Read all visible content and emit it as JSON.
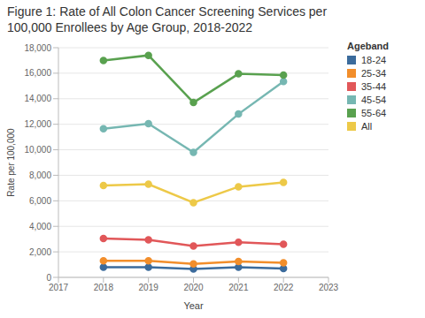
{
  "chart_data": {
    "type": "line",
    "title": "Figure 1: Rate of All Colon Cancer Screening Services per 100,000 Enrollees by Age Group, 2018-2022",
    "x_label": "Year",
    "y_label": "Rate per 100,000",
    "legend_title": "Ageband",
    "legend": "right",
    "grid": true,
    "marker": "circle",
    "x": [
      2018,
      2019,
      2020,
      2021,
      2022
    ],
    "xlim": [
      2017,
      2023
    ],
    "xticks": [
      2017,
      2018,
      2019,
      2020,
      2021,
      2022,
      2023
    ],
    "ylim": [
      0,
      18000
    ],
    "yticks": [
      0,
      {
        "value": 2000,
        "label": "2,000"
      },
      {
        "value": 4000,
        "label": "4,000"
      },
      {
        "value": 6000,
        "label": "6,000"
      },
      {
        "value": 8000,
        "label": "8,000"
      },
      {
        "value": 10000,
        "label": "10,000"
      },
      {
        "value": 12000,
        "label": "12,000"
      },
      {
        "value": 14000,
        "label": "14,000"
      },
      {
        "value": 16000,
        "label": "16,000"
      },
      {
        "value": 18000,
        "label": "18,000"
      }
    ],
    "series": [
      {
        "name": "18-24",
        "color": "#3b6b9c",
        "values": [
          800,
          800,
          650,
          800,
          700
        ]
      },
      {
        "name": "25-34",
        "color": "#f28e2b",
        "values": [
          1300,
          1300,
          1050,
          1250,
          1150
        ]
      },
      {
        "name": "35-44",
        "color": "#e15759",
        "values": [
          3050,
          2950,
          2450,
          2750,
          2600
        ]
      },
      {
        "name": "45-54",
        "color": "#76b7b2",
        "values": [
          11650,
          12050,
          9800,
          12800,
          15350
        ]
      },
      {
        "name": "55-64",
        "color": "#59a14f",
        "values": [
          17000,
          17400,
          13700,
          15950,
          15850
        ]
      },
      {
        "name": "All",
        "color": "#edc948",
        "values": [
          7200,
          7300,
          5850,
          7100,
          7450
        ]
      }
    ]
  }
}
